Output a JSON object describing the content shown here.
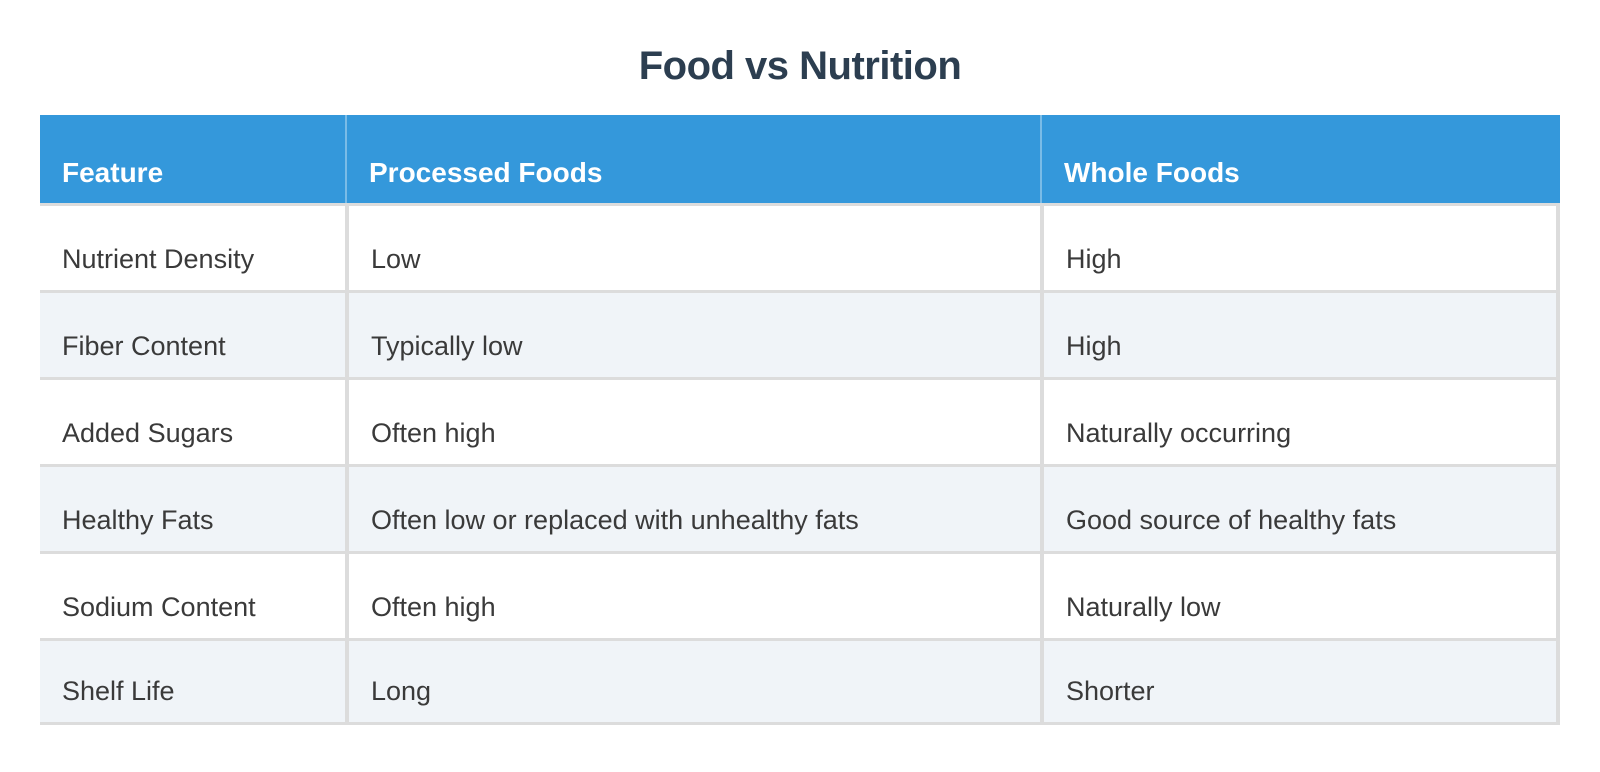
{
  "chart_data": {
    "type": "table",
    "title": "Food vs Nutrition",
    "columns": [
      "Feature",
      "Processed Foods",
      "Whole Foods"
    ],
    "rows": [
      [
        "Nutrient Density",
        "Low",
        "High"
      ],
      [
        "Fiber Content",
        "Typically low",
        "High"
      ],
      [
        "Added Sugars",
        "Often high",
        "Naturally occurring"
      ],
      [
        "Healthy Fats",
        "Often low or replaced with unhealthy fats",
        "Good source of healthy fats"
      ],
      [
        "Sodium Content",
        "Often high",
        "Naturally low"
      ],
      [
        "Shelf Life",
        "Long",
        "Shorter"
      ]
    ]
  },
  "colors": {
    "header_bg": "#3498db",
    "header_text": "#ffffff",
    "title_text": "#2c3e50",
    "body_text": "#3a3a3a",
    "row_bg": "#ffffff",
    "row_alt_bg": "#f0f4f8",
    "divider": "#dcdcdc"
  }
}
